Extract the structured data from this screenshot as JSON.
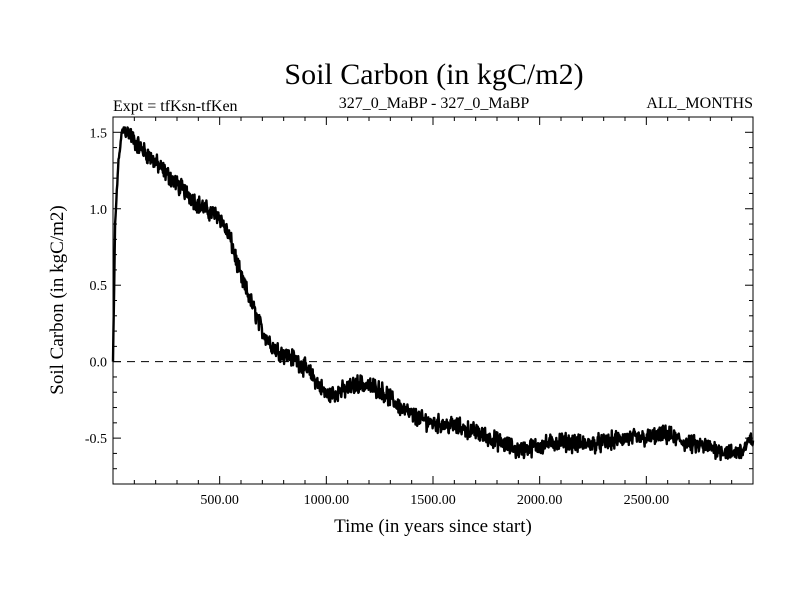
{
  "chart_data": {
    "type": "line",
    "title": "Soil Carbon (in kgC/m2)",
    "subtitle_left": "Expt = tfKsn-tfKen",
    "subtitle_center": "327_0_MaBP - 327_0_MaBP",
    "subtitle_right": "ALL_MONTHS",
    "xlabel": "Time (in years since start)",
    "ylabel": "Soil Carbon (in kgC/m2)",
    "xlim": [
      0,
      3000
    ],
    "ylim": [
      -0.8,
      1.6
    ],
    "x_ticks": [
      500,
      1000,
      1500,
      2000,
      2500
    ],
    "x_tick_labels": [
      "500.00",
      "1000.00",
      "1500.00",
      "2000.00",
      "2500.00"
    ],
    "y_ticks": [
      -0.5,
      0.0,
      0.5,
      1.0,
      1.5
    ],
    "y_tick_labels": [
      "-0.5",
      "0.0",
      "0.5",
      "1.0",
      "1.5"
    ],
    "reference_line": 0.0,
    "series": [
      {
        "name": "Soil Carbon",
        "x": [
          0,
          10,
          25,
          40,
          50,
          75,
          100,
          150,
          200,
          250,
          300,
          350,
          400,
          450,
          500,
          550,
          600,
          650,
          700,
          750,
          800,
          850,
          900,
          950,
          1000,
          1050,
          1100,
          1150,
          1200,
          1250,
          1300,
          1350,
          1400,
          1450,
          1500,
          1600,
          1700,
          1800,
          1900,
          2000,
          2100,
          2200,
          2300,
          2400,
          2500,
          2600,
          2700,
          2800,
          2900,
          2950,
          3000
        ],
        "values": [
          0.0,
          0.9,
          1.3,
          1.48,
          1.52,
          1.5,
          1.44,
          1.37,
          1.3,
          1.23,
          1.16,
          1.1,
          1.03,
          0.98,
          0.95,
          0.8,
          0.55,
          0.38,
          0.2,
          0.1,
          0.05,
          0.02,
          -0.04,
          -0.12,
          -0.22,
          -0.2,
          -0.18,
          -0.14,
          -0.16,
          -0.18,
          -0.24,
          -0.3,
          -0.35,
          -0.38,
          -0.4,
          -0.42,
          -0.46,
          -0.52,
          -0.58,
          -0.55,
          -0.52,
          -0.54,
          -0.53,
          -0.5,
          -0.5,
          -0.48,
          -0.54,
          -0.56,
          -0.6,
          -0.58,
          -0.5
        ]
      }
    ]
  }
}
